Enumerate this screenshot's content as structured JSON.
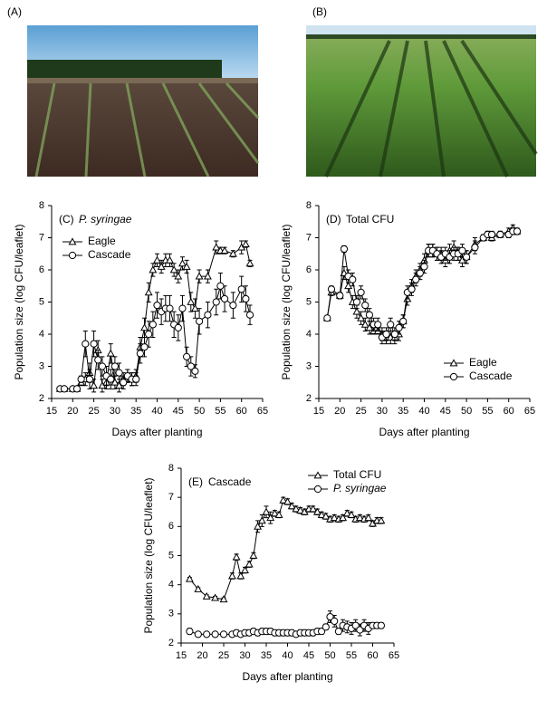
{
  "photos": [
    {
      "label": "(A)"
    },
    {
      "label": "(B)"
    }
  ],
  "chart_data": [
    {
      "type": "line",
      "panel": "(C)",
      "title": "P. syringae",
      "title_style": "italic",
      "x_label": "Days after planting",
      "y_label": "Population size (log CFU/leaflet)",
      "xlim": [
        15,
        65
      ],
      "xticks": [
        15,
        20,
        25,
        30,
        35,
        40,
        45,
        50,
        55,
        60,
        65
      ],
      "ylim": [
        2,
        8
      ],
      "yticks": [
        2,
        3,
        4,
        5,
        6,
        7,
        8
      ],
      "legend": "upper left",
      "x": [
        17,
        18,
        20,
        21,
        22,
        23,
        24,
        25,
        26,
        27,
        28,
        29,
        30,
        31,
        32,
        33,
        34,
        35,
        36,
        37,
        38,
        39,
        40,
        41,
        42,
        43,
        44,
        45,
        46,
        47,
        48,
        49,
        50,
        52,
        54,
        55,
        56,
        58,
        60,
        61,
        62
      ],
      "series": [
        {
          "name": "Eagle",
          "color": "#000000",
          "marker": "triangle",
          "values": [
            2.3,
            2.3,
            2.3,
            2.3,
            2.5,
            2.6,
            2.8,
            2.4,
            3.5,
            2.4,
            2.5,
            3.4,
            2.5,
            2.4,
            2.6,
            2.7,
            2.6,
            2.7,
            3.6,
            4.2,
            5.3,
            6.0,
            6.3,
            6.1,
            6.3,
            6.3,
            6.0,
            5.8,
            6.2,
            6.1,
            5.0,
            4.8,
            5.8,
            5.8,
            6.7,
            6.6,
            6.6,
            6.5,
            6.7,
            6.8,
            6.2
          ],
          "errors": [
            0.05,
            0.05,
            0.05,
            0.05,
            0.1,
            0.2,
            0.3,
            0.2,
            0.3,
            0.2,
            0.2,
            0.3,
            0.2,
            0.2,
            0.2,
            0.2,
            0.2,
            0.2,
            0.3,
            0.3,
            0.3,
            0.2,
            0.2,
            0.2,
            0.2,
            0.2,
            0.2,
            0.2,
            0.2,
            0.2,
            0.3,
            0.3,
            0.2,
            0.2,
            0.2,
            0.1,
            0.1,
            0.1,
            0.2,
            0.1,
            0.1
          ]
        },
        {
          "name": "Cascade",
          "color": "#000000",
          "marker": "circle",
          "values": [
            2.3,
            2.3,
            2.3,
            2.3,
            2.6,
            3.7,
            2.6,
            3.7,
            3.2,
            3.0,
            2.7,
            2.6,
            3.0,
            2.8,
            2.5,
            2.7,
            2.6,
            2.6,
            3.4,
            3.6,
            4.0,
            4.3,
            4.9,
            4.7,
            4.8,
            4.8,
            4.3,
            4.2,
            4.8,
            3.3,
            3.0,
            2.85,
            4.4,
            4.6,
            5.0,
            5.5,
            5.1,
            4.9,
            5.4,
            5.1,
            4.6
          ],
          "errors": [
            0.05,
            0.05,
            0.05,
            0.05,
            0.1,
            0.4,
            0.3,
            0.4,
            0.3,
            0.3,
            0.3,
            0.3,
            0.3,
            0.3,
            0.2,
            0.2,
            0.2,
            0.2,
            0.3,
            0.3,
            0.4,
            0.4,
            0.4,
            0.4,
            0.4,
            0.4,
            0.4,
            0.4,
            0.4,
            0.3,
            0.3,
            0.2,
            0.4,
            0.4,
            0.4,
            0.4,
            0.4,
            0.4,
            0.4,
            0.4,
            0.3
          ]
        }
      ]
    },
    {
      "type": "line",
      "panel": "(D)",
      "title": "Total CFU",
      "x_label": "Days after planting",
      "y_label": "Population size (log CFU/leaflet)",
      "xlim": [
        15,
        65
      ],
      "xticks": [
        15,
        20,
        25,
        30,
        35,
        40,
        45,
        50,
        55,
        60,
        65
      ],
      "ylim": [
        2,
        8
      ],
      "yticks": [
        2,
        3,
        4,
        5,
        6,
        7,
        8
      ],
      "legend": "lower right",
      "x": [
        17,
        18,
        20,
        21,
        22,
        23,
        24,
        25,
        26,
        27,
        28,
        29,
        30,
        31,
        32,
        33,
        34,
        35,
        36,
        37,
        38,
        39,
        40,
        41,
        42,
        43,
        44,
        45,
        46,
        47,
        48,
        49,
        50,
        52,
        54,
        55,
        56,
        58,
        60,
        61,
        62
      ],
      "series": [
        {
          "name": "Eagle",
          "color": "#000000",
          "marker": "triangle",
          "values": [
            4.5,
            5.3,
            5.2,
            5.9,
            5.5,
            5.0,
            4.7,
            4.5,
            4.3,
            4.2,
            4.1,
            4.1,
            4.0,
            3.9,
            3.9,
            3.9,
            4.0,
            4.4,
            5.1,
            5.5,
            5.8,
            6.0,
            6.3,
            6.6,
            6.6,
            6.5,
            6.5,
            6.3,
            6.6,
            6.7,
            6.5,
            6.3,
            6.4,
            6.8,
            7.0,
            7.1,
            7.0,
            7.1,
            7.2,
            7.3,
            7.2
          ],
          "errors": [
            0.05,
            0.1,
            0.1,
            0.2,
            0.2,
            0.2,
            0.2,
            0.2,
            0.2,
            0.2,
            0.1,
            0.1,
            0.2,
            0.2,
            0.2,
            0.2,
            0.2,
            0.2,
            0.2,
            0.2,
            0.2,
            0.2,
            0.2,
            0.2,
            0.2,
            0.2,
            0.2,
            0.2,
            0.2,
            0.2,
            0.2,
            0.2,
            0.2,
            0.2,
            0.1,
            0.1,
            0.1,
            0.1,
            0.1,
            0.1,
            0.1
          ]
        },
        {
          "name": "Cascade",
          "color": "#000000",
          "marker": "circle",
          "values": [
            4.5,
            5.4,
            5.2,
            6.65,
            5.8,
            5.7,
            5.0,
            5.3,
            4.9,
            4.6,
            4.3,
            4.3,
            3.9,
            4.0,
            4.3,
            4.0,
            4.2,
            4.4,
            5.3,
            5.4,
            5.7,
            5.9,
            6.1,
            6.6,
            6.6,
            6.5,
            6.4,
            6.5,
            6.4,
            6.5,
            6.5,
            6.6,
            6.4,
            6.7,
            7.0,
            7.1,
            7.1,
            7.1,
            7.1,
            7.2,
            7.2
          ],
          "errors": [
            0.05,
            0.1,
            0.1,
            0.1,
            0.2,
            0.2,
            0.2,
            0.2,
            0.2,
            0.2,
            0.2,
            0.2,
            0.2,
            0.2,
            0.2,
            0.2,
            0.2,
            0.2,
            0.2,
            0.2,
            0.2,
            0.2,
            0.2,
            0.2,
            0.2,
            0.2,
            0.2,
            0.2,
            0.2,
            0.2,
            0.2,
            0.2,
            0.2,
            0.2,
            0.1,
            0.1,
            0.1,
            0.1,
            0.1,
            0.1,
            0.1
          ]
        }
      ]
    },
    {
      "type": "line",
      "panel": "(E)",
      "title": "Cascade",
      "x_label": "Days after planting",
      "y_label": "Population size (log CFU/leaflet)",
      "xlim": [
        15,
        65
      ],
      "xticks": [
        15,
        20,
        25,
        30,
        35,
        40,
        45,
        50,
        55,
        60,
        65
      ],
      "ylim": [
        2,
        8
      ],
      "yticks": [
        2,
        3,
        4,
        5,
        6,
        7,
        8
      ],
      "legend": "upper right",
      "x": [
        17,
        19,
        21,
        23,
        25,
        27,
        28,
        29,
        30,
        31,
        32,
        33,
        34,
        35,
        36,
        37,
        38,
        39,
        40,
        41,
        42,
        43,
        44,
        45,
        46,
        47,
        48,
        49,
        50,
        51,
        52,
        53,
        54,
        55,
        56,
        57,
        58,
        59,
        60,
        61,
        62
      ],
      "series": [
        {
          "name": "Total CFU",
          "color": "#000000",
          "marker": "triangle",
          "values": [
            4.2,
            3.85,
            3.6,
            3.55,
            3.5,
            4.3,
            4.95,
            4.3,
            4.5,
            4.7,
            5.0,
            6.0,
            6.2,
            6.5,
            6.3,
            6.45,
            6.4,
            6.9,
            6.85,
            6.7,
            6.6,
            6.55,
            6.5,
            6.6,
            6.6,
            6.5,
            6.4,
            6.35,
            6.25,
            6.3,
            6.25,
            6.3,
            6.45,
            6.4,
            6.25,
            6.3,
            6.25,
            6.3,
            6.1,
            6.2,
            6.2
          ],
          "errors": [
            0.05,
            0.05,
            0.05,
            0.05,
            0.05,
            0.1,
            0.1,
            0.1,
            0.1,
            0.1,
            0.1,
            0.2,
            0.2,
            0.2,
            0.2,
            0.1,
            0.1,
            0.1,
            0.1,
            0.1,
            0.1,
            0.1,
            0.1,
            0.1,
            0.1,
            0.1,
            0.1,
            0.1,
            0.1,
            0.1,
            0.1,
            0.1,
            0.1,
            0.1,
            0.1,
            0.1,
            0.1,
            0.1,
            0.1,
            0.1,
            0.1
          ]
        },
        {
          "name": "P. syringae",
          "color": "#000000",
          "marker": "circle",
          "style": "italic",
          "values": [
            2.4,
            2.3,
            2.3,
            2.3,
            2.3,
            2.3,
            2.35,
            2.3,
            2.35,
            2.35,
            2.4,
            2.35,
            2.4,
            2.4,
            2.4,
            2.35,
            2.35,
            2.35,
            2.35,
            2.35,
            2.3,
            2.35,
            2.35,
            2.35,
            2.35,
            2.4,
            2.4,
            2.55,
            2.9,
            2.75,
            2.4,
            2.6,
            2.55,
            2.5,
            2.6,
            2.45,
            2.6,
            2.5,
            2.6,
            2.6,
            2.6
          ],
          "errors": [
            0.1,
            0.05,
            0.05,
            0.05,
            0.05,
            0.05,
            0.1,
            0.05,
            0.1,
            0.1,
            0.1,
            0.1,
            0.1,
            0.1,
            0.1,
            0.1,
            0.1,
            0.1,
            0.1,
            0.1,
            0.05,
            0.1,
            0.1,
            0.1,
            0.1,
            0.1,
            0.1,
            0.1,
            0.2,
            0.2,
            0.1,
            0.2,
            0.2,
            0.2,
            0.2,
            0.2,
            0.2,
            0.2,
            0.1,
            0.1,
            0.1
          ]
        }
      ]
    }
  ]
}
